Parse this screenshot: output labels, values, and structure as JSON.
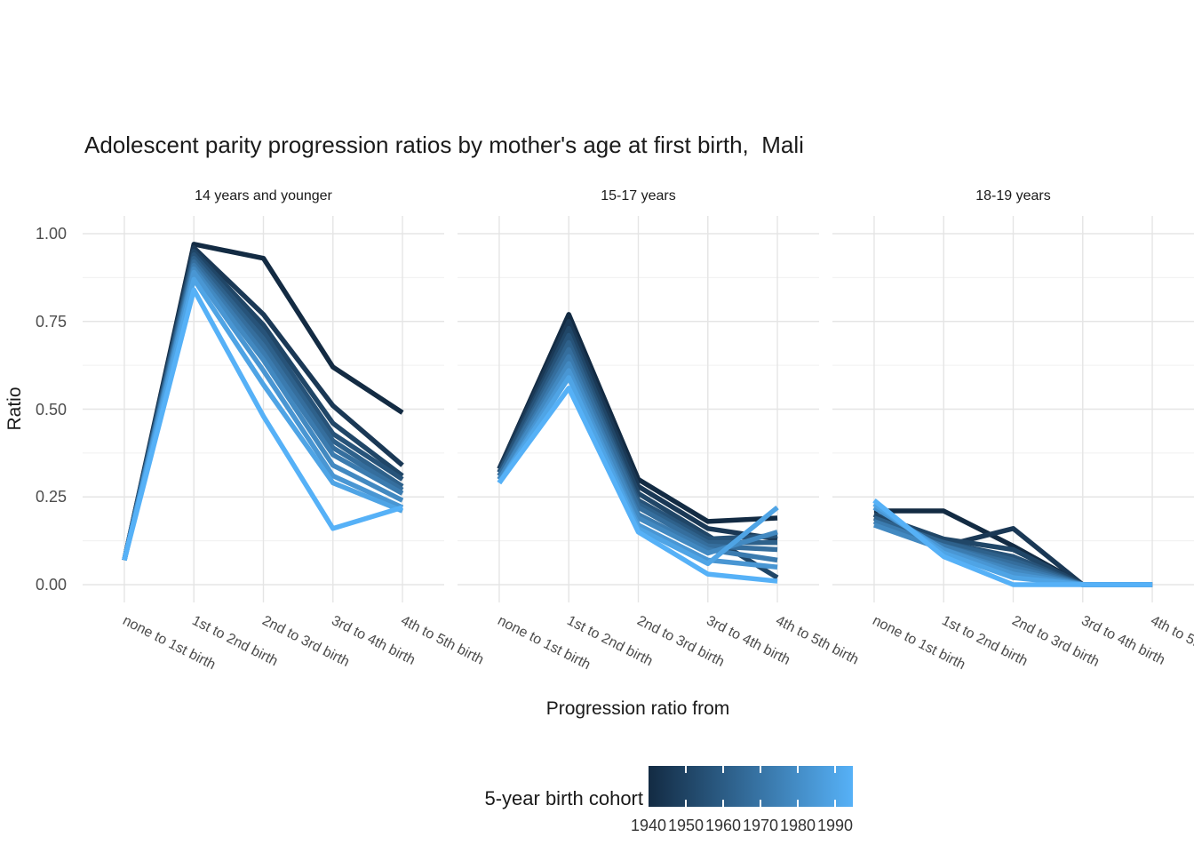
{
  "title": "Adolescent parity progression ratios by mother's age at first birth,  Mali",
  "axes": {
    "x_label": "Progression ratio from",
    "y_label": "Ratio",
    "y_tick_labels": [
      "0.00",
      "0.25",
      "0.50",
      "0.75",
      "1.00"
    ]
  },
  "legend": {
    "title": "5-year birth cohort",
    "tick_labels": [
      "1940",
      "1950",
      "1960",
      "1970",
      "1980",
      "1990"
    ],
    "gradient_low": "#132B43",
    "gradient_high": "#56B1F7"
  },
  "chart_data": {
    "type": "line",
    "title": "Adolescent parity progression ratios by mother's age at first birth,  Mali",
    "xlabel": "Progression ratio from",
    "ylabel": "Ratio",
    "ylim": [
      0,
      1
    ],
    "yticks": [
      0,
      0.25,
      0.5,
      0.75,
      1
    ],
    "grid": true,
    "legend_position": "bottom",
    "categories": [
      "none to 1st birth",
      "1st to 2nd birth",
      "2nd to 3rd birth",
      "3rd to 4th birth",
      "4th to 5th birth"
    ],
    "color_scale": {
      "title": "5-year birth cohort",
      "low": "#132B43",
      "high": "#56B1F7",
      "domain": [
        1940,
        1990
      ]
    },
    "cohorts": [
      1940,
      1945,
      1950,
      1955,
      1960,
      1965,
      1970,
      1975,
      1980,
      1985,
      1990
    ],
    "cohort_colors": [
      "#132b43",
      "#1a3855",
      "#204667",
      "#275379",
      "#2e618b",
      "#356e9d",
      "#3b7baf",
      "#4289c1",
      "#4996d3",
      "#4fa4e5",
      "#56b1f7"
    ],
    "facets": [
      {
        "label": "14 years and younger",
        "series": [
          {
            "cohort": 1940,
            "values": [
              0.07,
              0.97,
              0.93,
              0.62,
              0.49
            ]
          },
          {
            "cohort": 1945,
            "values": [
              0.07,
              0.96,
              0.77,
              0.51,
              0.34
            ]
          },
          {
            "cohort": 1950,
            "values": [
              0.07,
              0.95,
              0.74,
              0.46,
              0.31
            ]
          },
          {
            "cohort": 1955,
            "values": [
              0.07,
              0.94,
              0.72,
              0.43,
              0.3
            ]
          },
          {
            "cohort": 1960,
            "values": [
              0.07,
              0.93,
              0.7,
              0.41,
              0.28
            ]
          },
          {
            "cohort": 1965,
            "values": [
              0.07,
              0.92,
              0.68,
              0.39,
              0.27
            ]
          },
          {
            "cohort": 1970,
            "values": [
              0.07,
              0.91,
              0.66,
              0.37,
              0.26
            ]
          },
          {
            "cohort": 1975,
            "values": [
              0.07,
              0.9,
              0.64,
              0.34,
              0.24
            ]
          },
          {
            "cohort": 1980,
            "values": [
              0.07,
              0.89,
              0.61,
              0.31,
              0.22
            ]
          },
          {
            "cohort": 1985,
            "values": [
              0.07,
              0.87,
              0.57,
              0.29,
              0.21
            ]
          },
          {
            "cohort": 1990,
            "values": [
              0.07,
              0.84,
              0.48,
              0.16,
              0.22
            ]
          }
        ]
      },
      {
        "label": "15-17 years",
        "series": [
          {
            "cohort": 1940,
            "values": [
              0.33,
              0.77,
              0.3,
              0.18,
              0.19
            ]
          },
          {
            "cohort": 1945,
            "values": [
              0.33,
              0.75,
              0.28,
              0.16,
              0.13
            ]
          },
          {
            "cohort": 1950,
            "values": [
              0.32,
              0.73,
              0.26,
              0.14,
              0.02
            ]
          },
          {
            "cohort": 1955,
            "values": [
              0.32,
              0.71,
              0.24,
              0.13,
              0.14
            ]
          },
          {
            "cohort": 1960,
            "values": [
              0.31,
              0.69,
              0.23,
              0.12,
              0.12
            ]
          },
          {
            "cohort": 1965,
            "values": [
              0.31,
              0.67,
              0.22,
              0.11,
              0.1
            ]
          },
          {
            "cohort": 1970,
            "values": [
              0.3,
              0.65,
              0.2,
              0.1,
              0.07
            ]
          },
          {
            "cohort": 1975,
            "values": [
              0.3,
              0.63,
              0.19,
              0.09,
              0.15
            ]
          },
          {
            "cohort": 1980,
            "values": [
              0.29,
              0.61,
              0.17,
              0.07,
              0.05
            ]
          },
          {
            "cohort": 1985,
            "values": [
              0.29,
              0.59,
              0.16,
              0.06,
              0.22
            ]
          },
          {
            "cohort": 1990,
            "values": [
              0.29,
              0.56,
              0.15,
              0.03,
              0.01
            ]
          }
        ]
      },
      {
        "label": "18-19 years",
        "series": [
          {
            "cohort": 1940,
            "values": [
              0.21,
              0.21,
              0.11,
              0.0,
              0.0
            ]
          },
          {
            "cohort": 1945,
            "values": [
              0.2,
              0.11,
              0.16,
              0.0,
              0.0
            ]
          },
          {
            "cohort": 1950,
            "values": [
              0.2,
              0.13,
              0.1,
              0.0,
              0.0
            ]
          },
          {
            "cohort": 1955,
            "values": [
              0.19,
              0.12,
              0.08,
              0.0,
              0.0
            ]
          },
          {
            "cohort": 1960,
            "values": [
              0.19,
              0.12,
              0.07,
              0.0,
              0.0
            ]
          },
          {
            "cohort": 1965,
            "values": [
              0.18,
              0.11,
              0.06,
              0.0,
              0.0
            ]
          },
          {
            "cohort": 1970,
            "values": [
              0.18,
              0.11,
              0.05,
              0.0,
              0.0
            ]
          },
          {
            "cohort": 1975,
            "values": [
              0.17,
              0.1,
              0.04,
              0.0,
              0.0
            ]
          },
          {
            "cohort": 1980,
            "values": [
              0.22,
              0.1,
              0.03,
              0.0,
              0.0
            ]
          },
          {
            "cohort": 1985,
            "values": [
              0.23,
              0.09,
              0.02,
              0.0,
              0.0
            ]
          },
          {
            "cohort": 1990,
            "values": [
              0.24,
              0.08,
              0.0,
              0.0,
              0.0
            ]
          }
        ]
      }
    ]
  }
}
